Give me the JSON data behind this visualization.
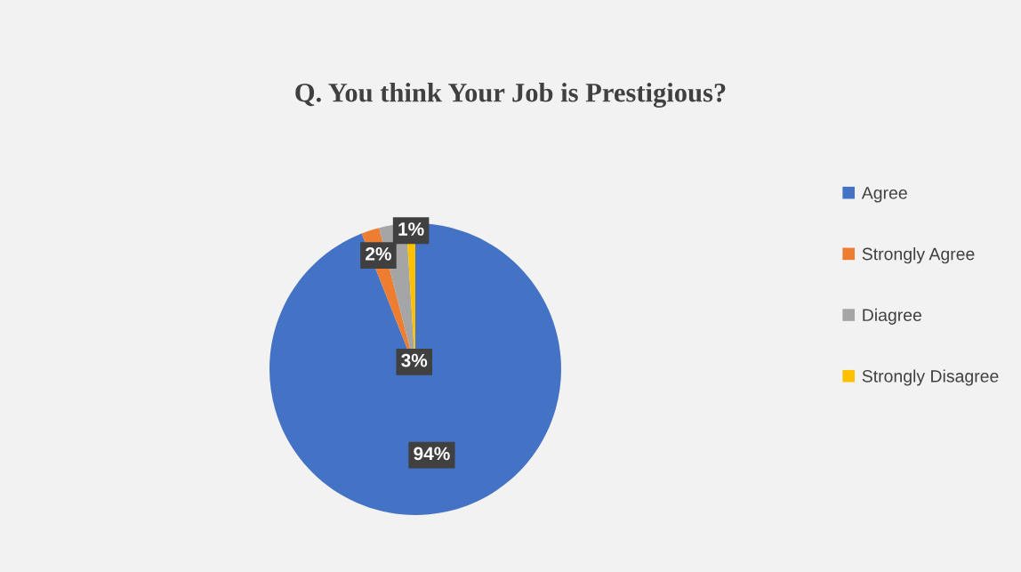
{
  "chart_data": {
    "type": "pie",
    "title": "Q. You think Your Job is Prestigious?",
    "categories": [
      "Agree",
      "Strongly Agree",
      "Diagree",
      "Strongly Disagree"
    ],
    "values": [
      94,
      2,
      3,
      1
    ],
    "colors": [
      "#4472c4",
      "#ed7d31",
      "#a5a5a5",
      "#ffc000"
    ],
    "value_labels": [
      "94%",
      "2%",
      "3%",
      "1%"
    ],
    "legend": "right"
  }
}
